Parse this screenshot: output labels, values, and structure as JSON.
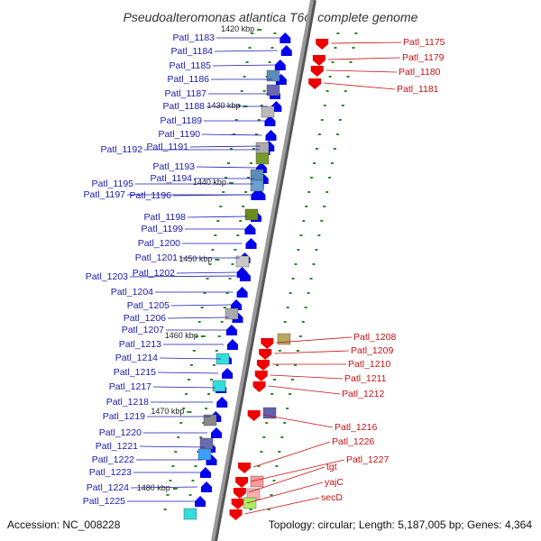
{
  "header": {
    "title": "Pseudoalteromonas atlantica T6c, complete genome"
  },
  "footer": {
    "accession": "Accession: NC_008228",
    "topology": "Topology: circular; Length: 5,187,005 bp; Genes: 4,364"
  },
  "scale_labels": [
    "1420 kbp",
    "1430 kbp",
    "1440 kbp",
    "1450 kbp",
    "1460 kbp",
    "1470 kbp",
    "1480 kbp"
  ],
  "left_genes": [
    "Patl_1183",
    "Patl_1184",
    "Patl_1185",
    "Patl_1186",
    "Patl_1187",
    "Patl_1188",
    "Patl_1189",
    "Patl_1190",
    "Patl_1192",
    "Patl_1191",
    "Patl_1193",
    "Patl_1194",
    "Patl_1195",
    "Patl_1197",
    "Patl_1196",
    "Patl_1198",
    "Patl_1199",
    "Patl_1200",
    "Patl_1201",
    "Patl_1203",
    "Patl_1202",
    "Patl_1204",
    "Patl_1205",
    "Patl_1206",
    "Patl_1207",
    "Patl_1213",
    "Patl_1214",
    "Patl_1215",
    "Patl_1217",
    "Patl_1218",
    "Patl_1219",
    "Patl_1220",
    "Patl_1221",
    "Patl_1222",
    "Patl_1223",
    "Patl_1224",
    "Patl_1225"
  ],
  "right_genes": [
    "Patl_1175",
    "Patl_1179",
    "Patl_1180",
    "Patl_1181",
    "Patl_1208",
    "Patl_1209",
    "Patl_1210",
    "Patl_1211",
    "Patl_1212",
    "Patl_1216",
    "Patl_1226",
    "Patl_1227",
    "tgt",
    "yajC",
    "secD"
  ],
  "colors": {
    "forward": "#0000ee",
    "reverse": "#ee0000",
    "backbone": "#999999",
    "tick": "#2a8a2a"
  }
}
